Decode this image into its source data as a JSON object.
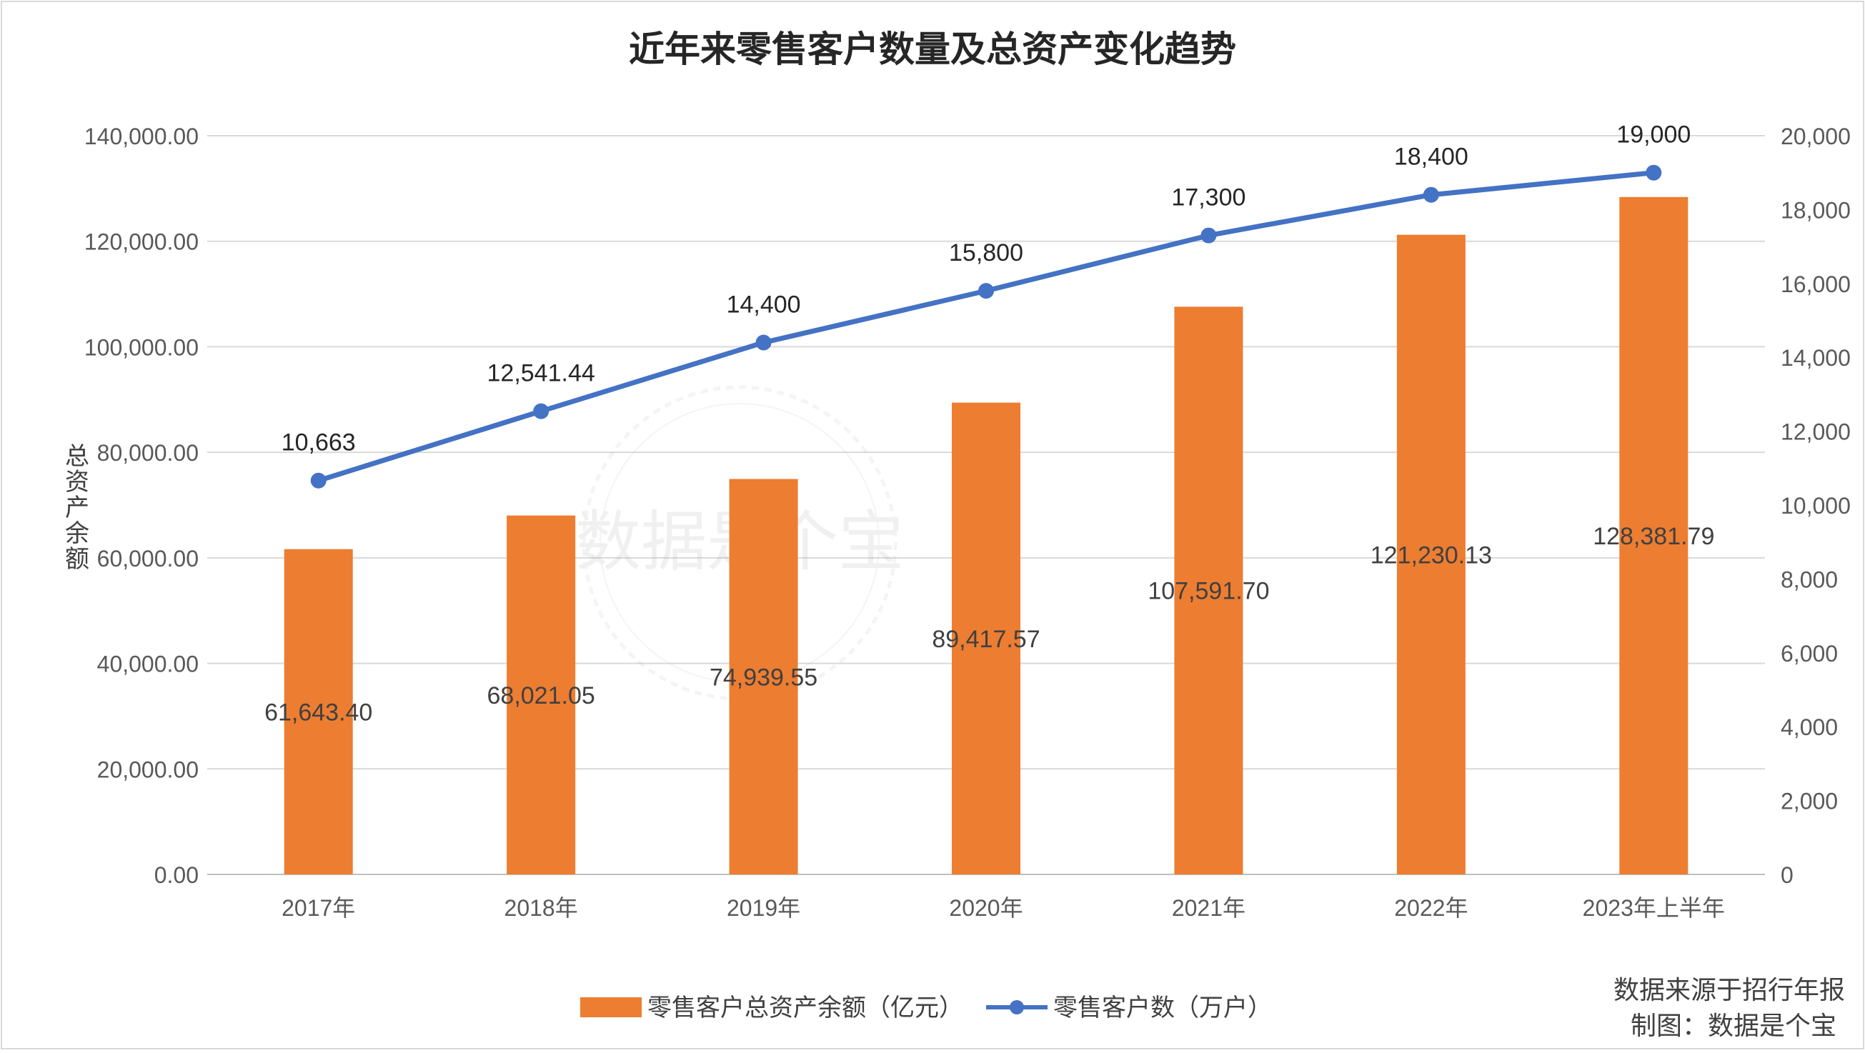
{
  "chart_data": {
    "type": "bar+line",
    "title": "近年来零售客户数量及总资产变化趋势",
    "categories": [
      "2017年",
      "2018年",
      "2019年",
      "2020年",
      "2021年",
      "2022年",
      "2023年上半年"
    ],
    "series": [
      {
        "name": "零售客户总资产余额（亿元）",
        "type": "bar",
        "axis": "left",
        "color": "#ED7D31",
        "values": [
          61643.4,
          68021.05,
          74939.55,
          89417.57,
          107591.7,
          121230.13,
          128381.79
        ],
        "labels": [
          "61,643.40",
          "68,021.05",
          "74,939.55",
          "89,417.57",
          "107,591.70",
          "121,230.13",
          "128,381.79"
        ]
      },
      {
        "name": "零售客户数（万户）",
        "type": "line",
        "axis": "right",
        "color": "#4472C4",
        "values": [
          10663,
          12541.44,
          14400,
          15800,
          17300,
          18400,
          19000
        ],
        "labels": [
          "10,663",
          "12,541.44",
          "14,400",
          "15,800",
          "17,300",
          "18,400",
          "19,000"
        ]
      }
    ],
    "ylabel": "总资产余额",
    "ylim": [
      0,
      140000
    ],
    "y_ticks": [
      "0.00",
      "20,000.00",
      "40,000.00",
      "60,000.00",
      "80,000.00",
      "100,000.00",
      "120,000.00",
      "140,000.00"
    ],
    "y2lim": [
      0,
      20000
    ],
    "y2_ticks": [
      "0",
      "2,000",
      "4,000",
      "6,000",
      "8,000",
      "10,000",
      "12,000",
      "14,000",
      "16,000",
      "18,000",
      "20,000"
    ],
    "grid": true,
    "legend": "bottom",
    "source_note": [
      "数据来源于招行年报",
      "制图：数据是个宝"
    ],
    "watermark": "数据是个宝"
  }
}
